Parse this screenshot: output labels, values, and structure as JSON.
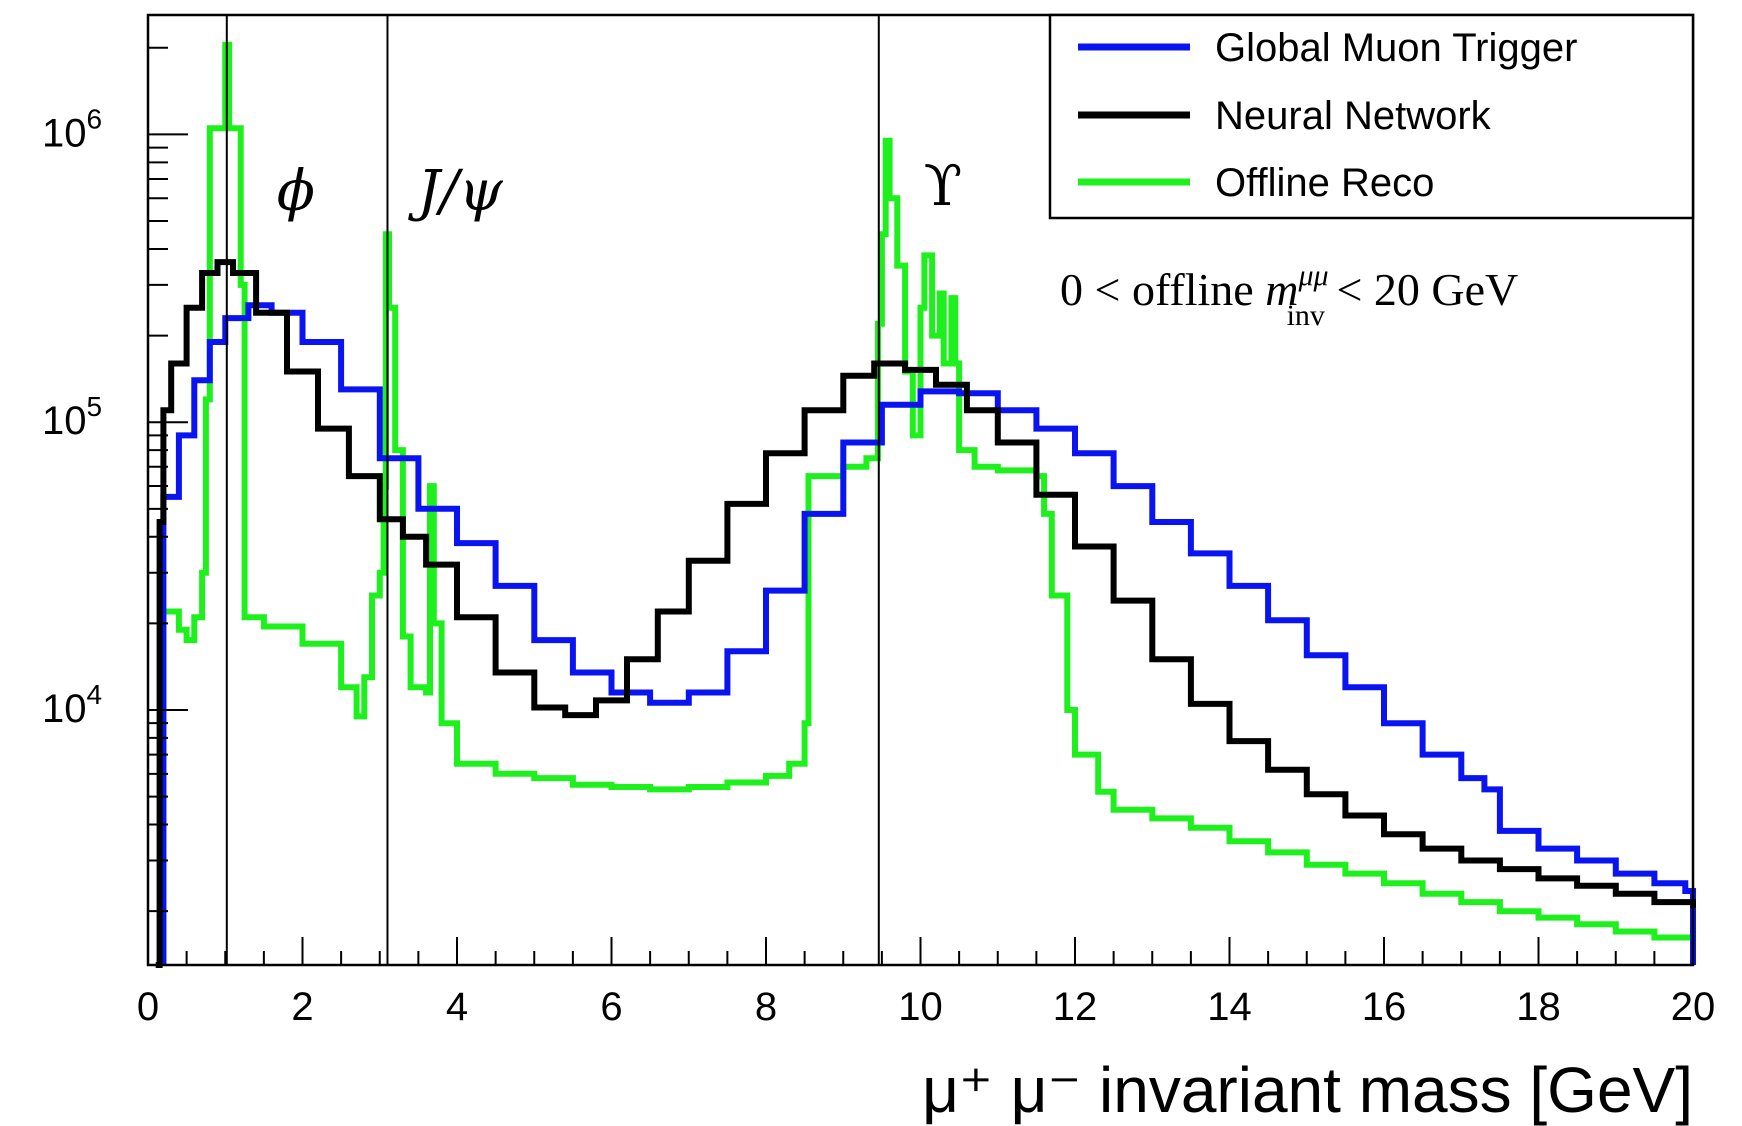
{
  "chart_data": {
    "type": "line",
    "step": true,
    "xlabel": "μ⁺ μ⁻ invariant mass [GeV]",
    "ylabel": "",
    "xlim": [
      0,
      20
    ],
    "ylim": [
      1300,
      2600000
    ],
    "ylog": true,
    "grid": false,
    "legend_position": "top-right",
    "x_ticks": [
      0,
      2,
      4,
      6,
      8,
      10,
      12,
      14,
      16,
      18,
      20
    ],
    "y_ticks": [
      {
        "value": 10000,
        "base": "10",
        "exp": "4"
      },
      {
        "value": 100000,
        "base": "10",
        "exp": "5"
      },
      {
        "value": 1000000,
        "base": "10",
        "exp": "6"
      }
    ],
    "annotation": {
      "prefix": "0 < offline ",
      "m": "m",
      "sup": "μμ",
      "sub": "inv",
      "suffix": " < 20 GeV"
    },
    "resonances": [
      {
        "label": "ϕ",
        "x": 1.02
      },
      {
        "label": "J/ψ",
        "x": 3.1
      },
      {
        "label": "ϒ",
        "x": 9.46
      }
    ],
    "series": [
      {
        "name": "Global Muon Trigger",
        "color": "#0a14f0",
        "points": [
          [
            0.2,
            55000
          ],
          [
            0.4,
            90000
          ],
          [
            0.6,
            140000
          ],
          [
            0.8,
            190000
          ],
          [
            1.0,
            230000
          ],
          [
            1.3,
            255000
          ],
          [
            1.6,
            240000
          ],
          [
            2.0,
            190000
          ],
          [
            2.5,
            130000
          ],
          [
            3.0,
            75000
          ],
          [
            3.5,
            50000
          ],
          [
            4.0,
            38000
          ],
          [
            4.5,
            27000
          ],
          [
            5.0,
            17500
          ],
          [
            5.5,
            13500
          ],
          [
            6.0,
            11500
          ],
          [
            6.5,
            10600
          ],
          [
            7.0,
            11500
          ],
          [
            7.5,
            16000
          ],
          [
            8.0,
            26000
          ],
          [
            8.5,
            48000
          ],
          [
            9.0,
            85000
          ],
          [
            9.5,
            115000
          ],
          [
            10.0,
            128000
          ],
          [
            10.5,
            126000
          ],
          [
            11.0,
            110000
          ],
          [
            11.5,
            95000
          ],
          [
            12.0,
            78000
          ],
          [
            12.5,
            60000
          ],
          [
            13.0,
            45000
          ],
          [
            13.5,
            35000
          ],
          [
            14.0,
            27000
          ],
          [
            14.5,
            20500
          ],
          [
            15.0,
            15500
          ],
          [
            15.5,
            12000
          ],
          [
            16.0,
            9000
          ],
          [
            16.5,
            7000
          ],
          [
            17.0,
            5800
          ],
          [
            17.3,
            5300
          ],
          [
            17.5,
            3800
          ],
          [
            18.0,
            3300
          ],
          [
            18.5,
            3000
          ],
          [
            19.0,
            2700
          ],
          [
            19.5,
            2500
          ],
          [
            19.9,
            2350
          ],
          [
            20.0,
            1300
          ]
        ]
      },
      {
        "name": "Neural Network",
        "color": "#000000",
        "points": [
          [
            0.1,
            1300
          ],
          [
            0.15,
            45000
          ],
          [
            0.2,
            110000
          ],
          [
            0.3,
            160000
          ],
          [
            0.5,
            250000
          ],
          [
            0.7,
            330000
          ],
          [
            0.9,
            360000
          ],
          [
            1.1,
            330000
          ],
          [
            1.4,
            240000
          ],
          [
            1.8,
            150000
          ],
          [
            2.2,
            95000
          ],
          [
            2.6,
            65000
          ],
          [
            3.0,
            46000
          ],
          [
            3.3,
            40000
          ],
          [
            3.6,
            32000
          ],
          [
            4.0,
            21000
          ],
          [
            4.5,
            13500
          ],
          [
            5.0,
            10200
          ],
          [
            5.4,
            9600
          ],
          [
            5.8,
            10800
          ],
          [
            6.2,
            15000
          ],
          [
            6.6,
            22000
          ],
          [
            7.0,
            33000
          ],
          [
            7.5,
            52000
          ],
          [
            8.0,
            78000
          ],
          [
            8.5,
            110000
          ],
          [
            9.0,
            145000
          ],
          [
            9.4,
            160000
          ],
          [
            9.8,
            152000
          ],
          [
            10.2,
            135000
          ],
          [
            10.6,
            110000
          ],
          [
            11.0,
            85000
          ],
          [
            11.5,
            56000
          ],
          [
            12.0,
            37000
          ],
          [
            12.5,
            24000
          ],
          [
            13.0,
            15000
          ],
          [
            13.5,
            10500
          ],
          [
            14.0,
            7800
          ],
          [
            14.5,
            6200
          ],
          [
            15.0,
            5100
          ],
          [
            15.5,
            4300
          ],
          [
            16.0,
            3700
          ],
          [
            16.5,
            3300
          ],
          [
            17.0,
            3000
          ],
          [
            17.5,
            2800
          ],
          [
            18.0,
            2600
          ],
          [
            18.5,
            2450
          ],
          [
            19.0,
            2300
          ],
          [
            19.5,
            2150
          ],
          [
            20.0,
            2050
          ]
        ]
      },
      {
        "name": "Offline Reco",
        "color": "#1ef01e",
        "points": [
          [
            0.2,
            22000
          ],
          [
            0.4,
            19000
          ],
          [
            0.5,
            17500
          ],
          [
            0.6,
            21000
          ],
          [
            0.7,
            30000
          ],
          [
            0.75,
            120000
          ],
          [
            0.8,
            1050000
          ],
          [
            0.95,
            1050000
          ],
          [
            1.0,
            2050000
          ],
          [
            1.05,
            1050000
          ],
          [
            1.15,
            1050000
          ],
          [
            1.2,
            300000
          ],
          [
            1.25,
            21000
          ],
          [
            1.5,
            19500
          ],
          [
            2.0,
            17000
          ],
          [
            2.5,
            12000
          ],
          [
            2.7,
            9500
          ],
          [
            2.8,
            13000
          ],
          [
            2.9,
            25000
          ],
          [
            3.0,
            30000
          ],
          [
            3.05,
            60000
          ],
          [
            3.08,
            450000
          ],
          [
            3.12,
            250000
          ],
          [
            3.2,
            80000
          ],
          [
            3.3,
            18000
          ],
          [
            3.4,
            12000
          ],
          [
            3.6,
            11500
          ],
          [
            3.65,
            60000
          ],
          [
            3.7,
            20000
          ],
          [
            3.8,
            9000
          ],
          [
            4.0,
            6500
          ],
          [
            4.5,
            6000
          ],
          [
            5.0,
            5800
          ],
          [
            5.5,
            5500
          ],
          [
            6.0,
            5400
          ],
          [
            6.5,
            5300
          ],
          [
            7.0,
            5400
          ],
          [
            7.5,
            5600
          ],
          [
            8.0,
            5900
          ],
          [
            8.3,
            6500
          ],
          [
            8.5,
            9000
          ],
          [
            8.55,
            65000
          ],
          [
            9.0,
            70000
          ],
          [
            9.3,
            75000
          ],
          [
            9.45,
            220000
          ],
          [
            9.5,
            450000
          ],
          [
            9.55,
            950000
          ],
          [
            9.6,
            600000
          ],
          [
            9.7,
            350000
          ],
          [
            9.8,
            150000
          ],
          [
            9.9,
            90000
          ],
          [
            10.0,
            250000
          ],
          [
            10.05,
            380000
          ],
          [
            10.15,
            200000
          ],
          [
            10.25,
            280000
          ],
          [
            10.3,
            160000
          ],
          [
            10.4,
            270000
          ],
          [
            10.45,
            160000
          ],
          [
            10.5,
            80000
          ],
          [
            10.7,
            70000
          ],
          [
            11.0,
            68000
          ],
          [
            11.5,
            65000
          ],
          [
            11.6,
            48000
          ],
          [
            11.7,
            25000
          ],
          [
            11.9,
            10000
          ],
          [
            12.0,
            7000
          ],
          [
            12.3,
            5200
          ],
          [
            12.5,
            4500
          ],
          [
            13.0,
            4200
          ],
          [
            13.5,
            3900
          ],
          [
            14.0,
            3500
          ],
          [
            14.5,
            3200
          ],
          [
            15.0,
            2900
          ],
          [
            15.5,
            2700
          ],
          [
            16.0,
            2500
          ],
          [
            16.5,
            2300
          ],
          [
            17.0,
            2150
          ],
          [
            17.5,
            2000
          ],
          [
            18.0,
            1900
          ],
          [
            18.5,
            1800
          ],
          [
            19.0,
            1700
          ],
          [
            19.5,
            1620
          ],
          [
            20.0,
            1550
          ]
        ]
      }
    ]
  }
}
